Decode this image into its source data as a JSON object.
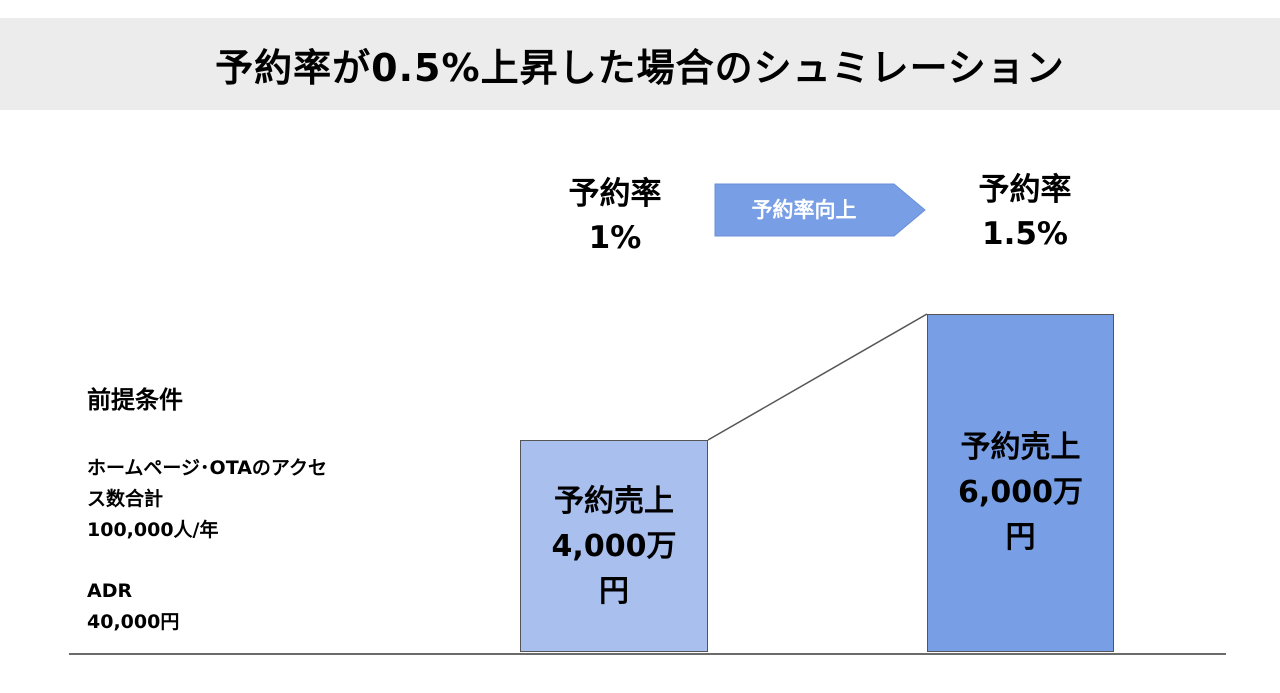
{
  "title": "予約率が0.5%上昇した場合のシュミレーション",
  "before": {
    "rate_label": "予約率",
    "rate_value": "1%",
    "bar_line1": "予約売上",
    "bar_line2": "4,000万",
    "bar_line3": "円",
    "sales_man_yen": 4000
  },
  "arrow_label": "予約率向上",
  "after": {
    "rate_label": "予約率",
    "rate_value": "1.5%",
    "bar_line1": "予約売上",
    "bar_line2": "6,000万",
    "bar_line3": "円",
    "sales_man_yen": 6000
  },
  "assumptions": {
    "heading": "前提条件",
    "access_line1": "ホームページ･OTAのアクセ",
    "access_line2": "ス数合計",
    "access_value": "100,000人/年",
    "adr_label": "ADR",
    "adr_value": "40,000円"
  },
  "colors": {
    "title_band": "#ececec",
    "bar_before": "#a9bfee",
    "bar_after": "#789ee5",
    "arrow": "#789ee5"
  }
}
